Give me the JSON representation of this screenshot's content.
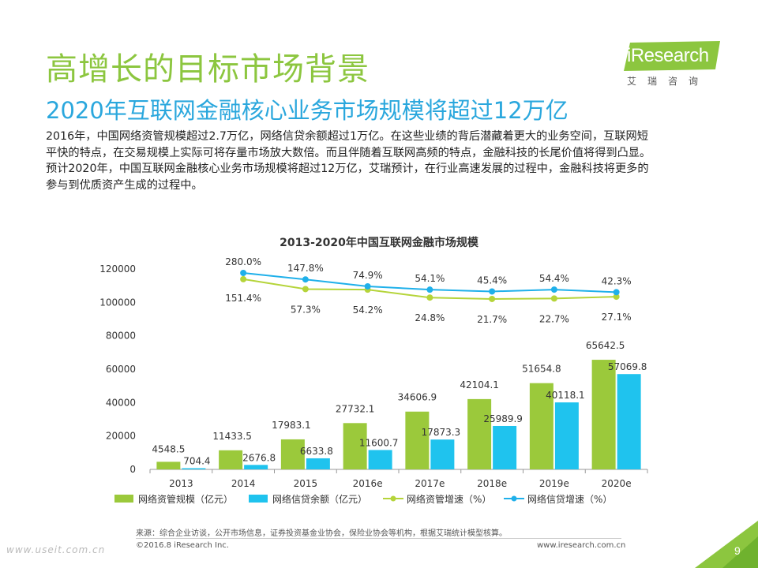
{
  "header": {
    "title": "高增长的目标市场背景",
    "subtitle": "2020年互联网金融核心业务市场规模将超过12万亿"
  },
  "logo": {
    "word": "iResearch",
    "cn": "艾瑞咨询"
  },
  "description": [
    "2016年，中国网络资管规模超过2.7万亿，网络信贷余额超过1万亿。在这些业绩的背后潜藏着更大的业务空间，互联网短",
    "平快的特点，在交易规模上实际可将存量市场放大数倍。而且伴随着互联网高频的特点，金融科技的长尾价值将得到凸显。",
    "预计2020年，中国互联网金融核心业务市场规模将超过12万亿，艾瑞预计，在行业高速发展的过程中，金融科技将更多的",
    "参与到优质资产生成的过程中。"
  ],
  "chart_data": {
    "type": "bar",
    "title": "2013-2020年中国互联网金融市场规模",
    "categories": [
      "2013",
      "2014",
      "2015",
      "2016e",
      "2017e",
      "2018e",
      "2019e",
      "2020e"
    ],
    "y_ticks": [
      "120000",
      "100000",
      "80000",
      "60000",
      "40000",
      "20000",
      "0"
    ],
    "ylim": [
      0,
      120000
    ],
    "series": [
      {
        "name": "网络资管规模（亿元）",
        "type": "bar",
        "color": "#9bc93b",
        "values": [
          4548.5,
          11433.5,
          17983.1,
          27732.1,
          34606.9,
          42104.1,
          51654.8,
          65642.5
        ],
        "labels": [
          "4548.5",
          "11433.5",
          "17983.1",
          "27732.1",
          "34606.9",
          "42104.1",
          "51654.8",
          "65642.5"
        ]
      },
      {
        "name": "网络信贷余额（亿元）",
        "type": "bar",
        "color": "#1fc3ee",
        "values": [
          704.4,
          2676.8,
          6633.8,
          11600.7,
          17873.3,
          25989.9,
          40118.1,
          57069.8
        ],
        "labels": [
          "704.4",
          "2676.8",
          "6633.8",
          "11600.7",
          "17873.3",
          "25989.9",
          "40118.1",
          "57069.8"
        ]
      },
      {
        "name": "网络资管增速（%）",
        "type": "line",
        "color": "#b5d43a",
        "values": [
          null,
          151.4,
          57.3,
          54.2,
          24.8,
          21.7,
          22.7,
          27.1
        ],
        "labels": [
          "",
          "151.4%",
          "57.3%",
          "54.2%",
          "24.8%",
          "21.7%",
          "22.7%",
          "27.1%"
        ]
      },
      {
        "name": "网络信贷增速（%）",
        "type": "line",
        "color": "#1fb0ea",
        "values": [
          null,
          280.0,
          147.8,
          74.9,
          54.1,
          45.4,
          54.4,
          42.3
        ],
        "labels": [
          "",
          "280.0%",
          "147.8%",
          "74.9%",
          "54.1%",
          "45.4%",
          "54.4%",
          "42.3%"
        ]
      }
    ],
    "legend_position": "bottom",
    "grid": false
  },
  "footer": {
    "source": "来源：综合企业访谈，公开市场信息，证券投资基金业协会，保险业协会等机构，根据艾瑞统计模型核算。",
    "copyright": "©2016.8 iResearch Inc.",
    "website": "www.iresearch.com.cn",
    "watermark": "www.useit.com.cn",
    "page": "9"
  },
  "colors": {
    "title": "#8cc63f",
    "subtitle": "#2aa7dd",
    "accent_green": "#9bc93b",
    "accent_blue": "#1fc3ee"
  }
}
